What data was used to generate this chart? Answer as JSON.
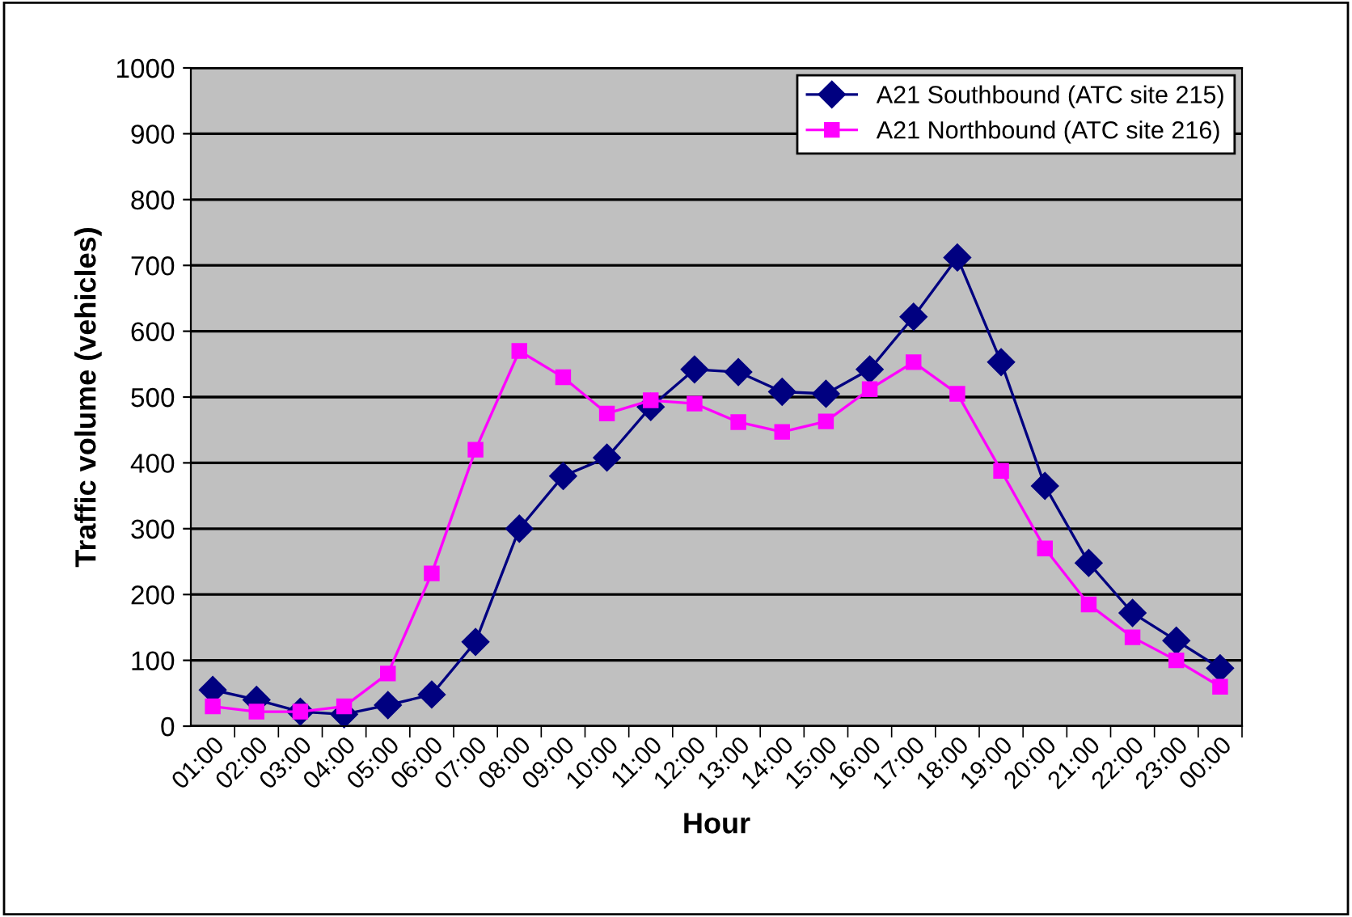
{
  "chart_data": {
    "type": "line",
    "xlabel": "Hour",
    "ylabel": "Traffic volume (vehicles)",
    "categories": [
      "01:00",
      "02:00",
      "03:00",
      "04:00",
      "05:00",
      "06:00",
      "07:00",
      "08:00",
      "09:00",
      "10:00",
      "11:00",
      "12:00",
      "13:00",
      "14:00",
      "15:00",
      "16:00",
      "17:00",
      "18:00",
      "19:00",
      "20:00",
      "21:00",
      "22:00",
      "23:00",
      "00:00"
    ],
    "series": [
      {
        "name": "A21 Southbound (ATC site 215)",
        "color": "#000080",
        "marker": "diamond",
        "values": [
          55,
          40,
          22,
          18,
          32,
          48,
          128,
          300,
          380,
          408,
          485,
          542,
          538,
          508,
          505,
          542,
          622,
          712,
          553,
          365,
          248,
          172,
          130,
          88
        ]
      },
      {
        "name": "A21 Northbound (ATC site 216)",
        "color": "#ff00ff",
        "marker": "square",
        "values": [
          30,
          22,
          22,
          30,
          80,
          232,
          420,
          570,
          530,
          475,
          495,
          490,
          462,
          447,
          463,
          512,
          553,
          505,
          388,
          270,
          185,
          135,
          100,
          60
        ]
      }
    ],
    "ylim": [
      0,
      1000
    ],
    "yticks": [
      0,
      100,
      200,
      300,
      400,
      500,
      600,
      700,
      800,
      900,
      1000
    ],
    "grid": "y",
    "legend": "top right"
  }
}
